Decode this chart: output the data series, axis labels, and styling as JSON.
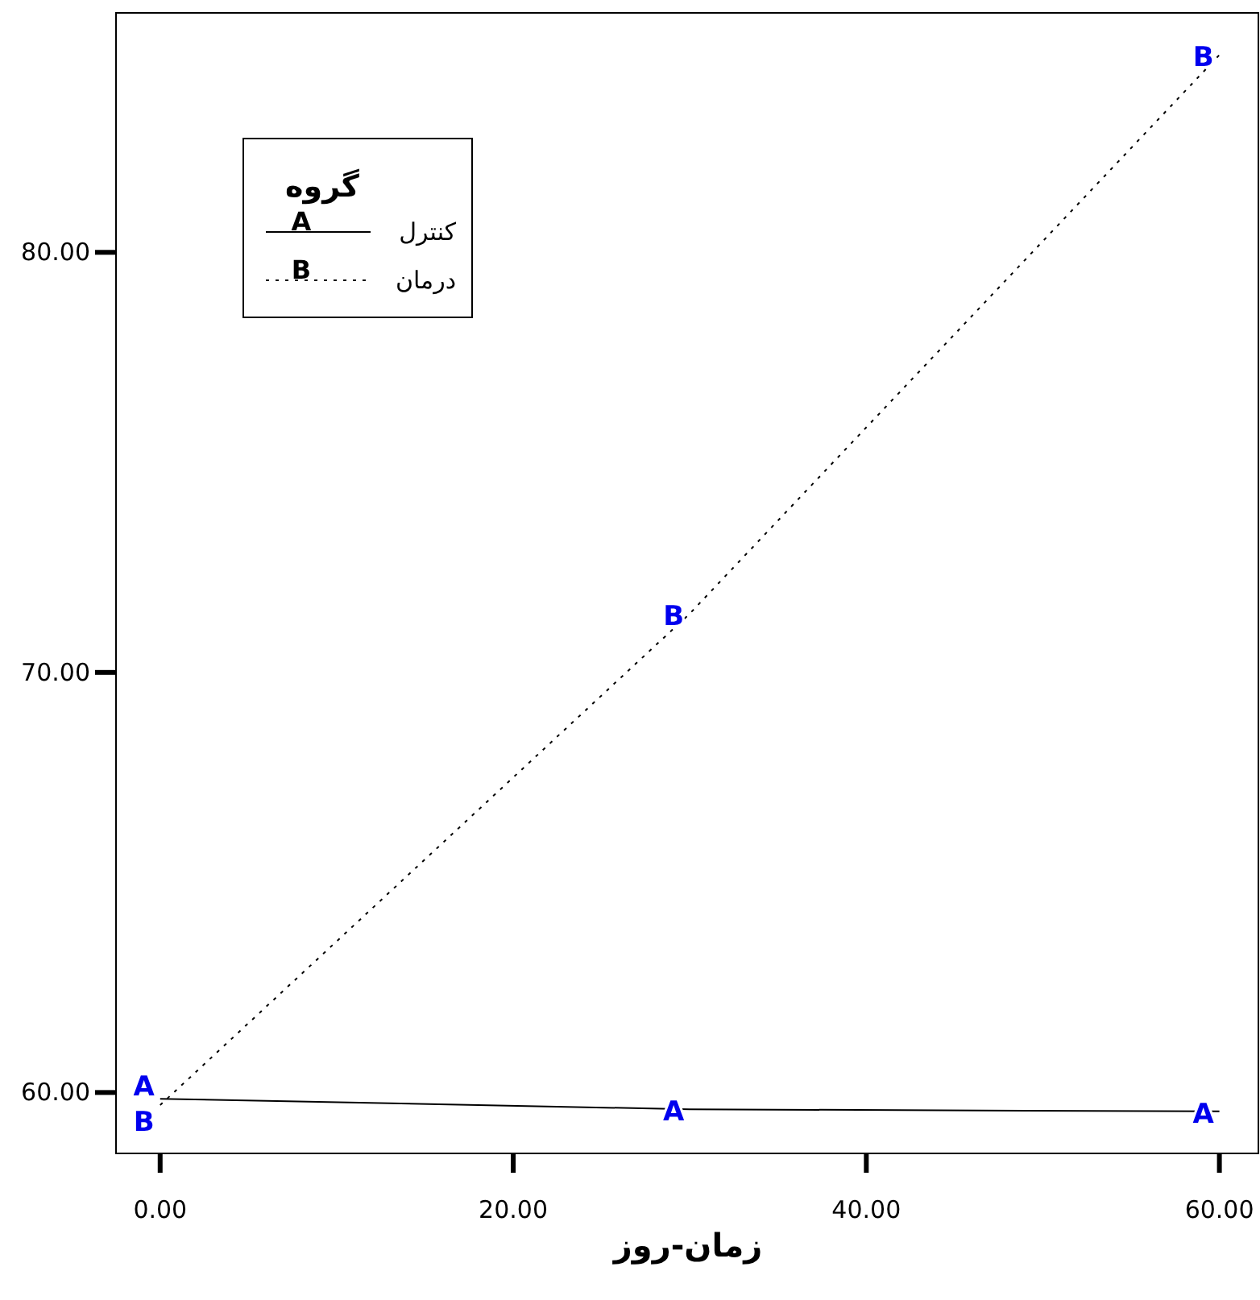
{
  "chart_data": {
    "type": "line",
    "xlabel": "زمان-روز",
    "legend_title": "گروه",
    "legend": "top left",
    "grid": false,
    "marker": "none",
    "x": [
      0,
      30,
      60
    ],
    "series": [
      {
        "name": "کنترل",
        "color": "#000000",
        "line_style": "solid",
        "values": [
          59.85,
          59.6,
          59.55
        ]
      },
      {
        "name": "درمان",
        "color": "#000000",
        "line_style": "dotted",
        "values": [
          59.7,
          71.4,
          84.7
        ]
      }
    ],
    "annotations": [
      {
        "text": "A",
        "x": 0,
        "y": 59.85
      },
      {
        "text": "A",
        "x": 30,
        "y": 59.6
      },
      {
        "text": "A",
        "x": 60,
        "y": 59.55
      },
      {
        "text": "B",
        "x": 0,
        "y": 59.7
      },
      {
        "text": "B",
        "x": 30,
        "y": 71.4
      },
      {
        "text": "B",
        "x": 60,
        "y": 84.7
      }
    ],
    "xlim": [
      -2.5,
      62.3
    ],
    "ylim": [
      58.55,
      85.7
    ],
    "xticks": [
      {
        "value": 0,
        "label": "0.00"
      },
      {
        "value": 20,
        "label": "20.00"
      },
      {
        "value": 40,
        "label": "40.00"
      },
      {
        "value": 60,
        "label": "60.00"
      }
    ],
    "yticks": [
      {
        "value": 60,
        "label": "60.00"
      },
      {
        "value": 70,
        "label": "70.00"
      },
      {
        "value": 80,
        "label": "80.00"
      }
    ]
  }
}
